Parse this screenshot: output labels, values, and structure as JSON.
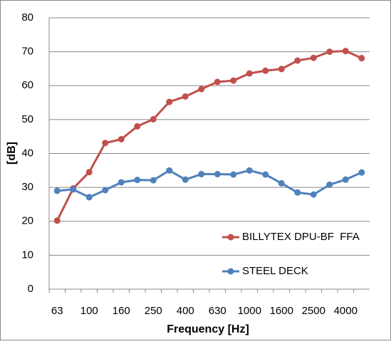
{
  "chart_data": {
    "type": "line",
    "x_label": "Frequency [Hz]",
    "y_label": "[dB]",
    "categories": [
      "63",
      null,
      "100",
      null,
      "160",
      null,
      "250",
      null,
      "400",
      null,
      "630",
      null,
      "1000",
      null,
      "1600",
      null,
      "2500",
      null,
      "4000",
      null
    ],
    "series": [
      {
        "name": "BILLYTEX DPU-BF  FFA",
        "color": "#c0504d",
        "values": [
          20.2,
          29.7,
          34.5,
          43.1,
          44.2,
          48.0,
          50.1,
          55.2,
          56.8,
          59.0,
          61.1,
          61.5,
          63.6,
          64.4,
          64.9,
          67.4,
          68.2,
          70.0,
          70.2,
          68.1
        ]
      },
      {
        "name": "STEEL DECK",
        "color": "#4f81bd",
        "values": [
          29.0,
          29.4,
          27.1,
          29.2,
          31.5,
          32.2,
          32.1,
          35.0,
          32.3,
          33.9,
          33.9,
          33.8,
          35.0,
          33.8,
          31.2,
          28.5,
          27.9,
          30.8,
          32.3,
          34.4
        ]
      }
    ],
    "ylim": [
      0,
      80
    ],
    "yticks": [
      0,
      10,
      20,
      30,
      40,
      50,
      60,
      70,
      80
    ],
    "grid": true,
    "legend": "lower right"
  }
}
